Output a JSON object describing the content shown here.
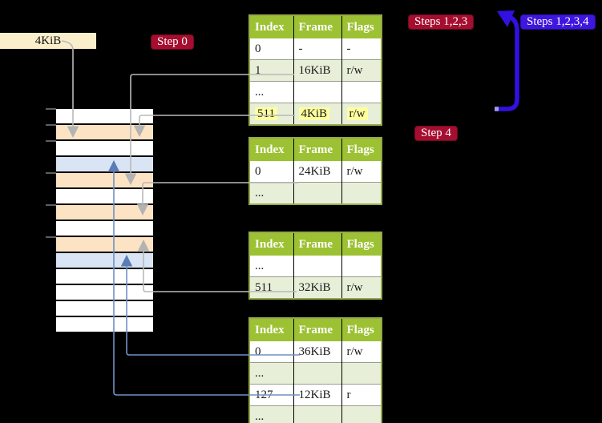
{
  "figure": {
    "description": "Four-level page-table translation diagram: four Index/Frame/Flags tables pointing into a physical-memory column",
    "background": "#000000"
  },
  "frame_label": {
    "text": "4KiB"
  },
  "badges": {
    "step0": {
      "label": "Step 0"
    },
    "steps123": {
      "label": "Steps 1,2,3"
    },
    "steps1234": {
      "label": "Steps 1,2,3,4"
    },
    "step4": {
      "label": "Step 4"
    }
  },
  "table_headers": [
    "Index",
    "Frame",
    "Flags"
  ],
  "tables": [
    {
      "rows": [
        {
          "index": "0",
          "frame": "-",
          "flags": "-"
        },
        {
          "index": "1",
          "frame": "16KiB",
          "flags": "r/w"
        },
        {
          "index": "...",
          "frame": "",
          "flags": ""
        },
        {
          "index": "511",
          "frame": "4KiB",
          "flags": "r/w",
          "highlight": true
        }
      ]
    },
    {
      "rows": [
        {
          "index": "0",
          "frame": "24KiB",
          "flags": "r/w"
        },
        {
          "index": "...",
          "frame": "",
          "flags": ""
        }
      ]
    },
    {
      "rows": [
        {
          "index": "...",
          "frame": "",
          "flags": ""
        },
        {
          "index": "511",
          "frame": "32KiB",
          "flags": "r/w"
        }
      ]
    },
    {
      "rows": [
        {
          "index": "0",
          "frame": "36KiB",
          "flags": "r/w"
        },
        {
          "index": "...",
          "frame": "",
          "flags": ""
        },
        {
          "index": "127",
          "frame": "12KiB",
          "flags": "r"
        },
        {
          "index": "...",
          "frame": "",
          "flags": ""
        }
      ]
    }
  ],
  "memory_column": {
    "row_pattern": [
      "white",
      "orange",
      "white",
      "blue",
      "orange",
      "white",
      "orange",
      "white",
      "orange",
      "blue",
      "white",
      "white",
      "white",
      "white"
    ]
  },
  "connections": [
    {
      "from": "frame-label-4KiB",
      "to": "memory-row-2",
      "color": "gray"
    },
    {
      "from": "table-1-row-1",
      "to": "memory-row-5",
      "color": "gray"
    },
    {
      "from": "table-1-row-511",
      "to": "memory-row-2",
      "color": "gray"
    },
    {
      "from": "table-2-row-0",
      "to": "memory-row-7",
      "color": "gray"
    },
    {
      "from": "table-3-row-511",
      "to": "memory-row-9",
      "color": "gray"
    },
    {
      "from": "table-4-row-0",
      "to": "memory-row-10",
      "color": "blue"
    },
    {
      "from": "table-4-row-127",
      "to": "memory-row-4",
      "color": "blue"
    },
    {
      "from": "table-1-bottom",
      "to": "table-1-top",
      "color": "indigo"
    }
  ],
  "colors": {
    "badge_red": "#a50e2f",
    "badge_blue": "#3f16dd",
    "table_header_green": "#9cc132",
    "table_row_green": "#e8efd9",
    "table_border_olive": "#97a84c",
    "memory_row_orange": "#fbe3c4",
    "memory_row_blue": "#d9e5f5",
    "highlight_yellow": "#feff9e",
    "frame_label_bg": "#fbeecb",
    "connector_gray": "#b9b9b9",
    "connector_blue": "#7191c4",
    "loop_arrow_indigo": "#3310e2"
  }
}
